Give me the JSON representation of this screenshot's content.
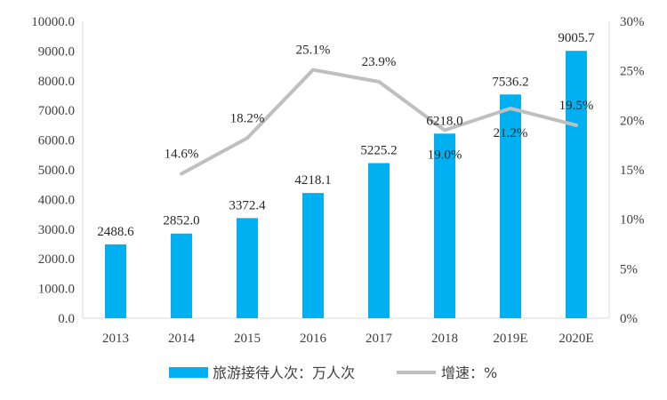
{
  "chart_data": {
    "type": "bar",
    "categories": [
      "2013",
      "2014",
      "2015",
      "2016",
      "2017",
      "2018",
      "2019E",
      "2020E"
    ],
    "series": [
      {
        "name": "旅游接待人次：万人次",
        "type": "bar",
        "axis": "left",
        "color": "#00B0F0",
        "values": [
          2488.6,
          2852.0,
          3372.4,
          4218.1,
          5225.2,
          6218.0,
          7536.2,
          9005.7
        ],
        "labels": [
          "2488.6",
          "2852.0",
          "3372.4",
          "4218.1",
          "5225.2",
          "6218.0",
          "7536.2",
          "9005.7"
        ]
      },
      {
        "name": "增速：%",
        "type": "line",
        "axis": "right",
        "color": "#BFBFBF",
        "values": [
          null,
          14.6,
          18.2,
          25.1,
          23.9,
          19.0,
          21.2,
          19.5
        ],
        "labels": [
          null,
          "14.6%",
          "18.2%",
          "25.1%",
          "23.9%",
          "19.0%",
          "21.2%",
          "19.5%"
        ]
      }
    ],
    "y_left": {
      "ylim": [
        0,
        10000
      ],
      "ticks": [
        "0.0",
        "1000.0",
        "2000.0",
        "3000.0",
        "4000.0",
        "5000.0",
        "6000.0",
        "7000.0",
        "8000.0",
        "9000.0",
        "10000.0"
      ]
    },
    "y_right": {
      "ylim": [
        0,
        30
      ],
      "ticks": [
        "0%",
        "5%",
        "10%",
        "15%",
        "20%",
        "25%",
        "30%"
      ]
    },
    "grid": false,
    "legend": "bottom"
  }
}
